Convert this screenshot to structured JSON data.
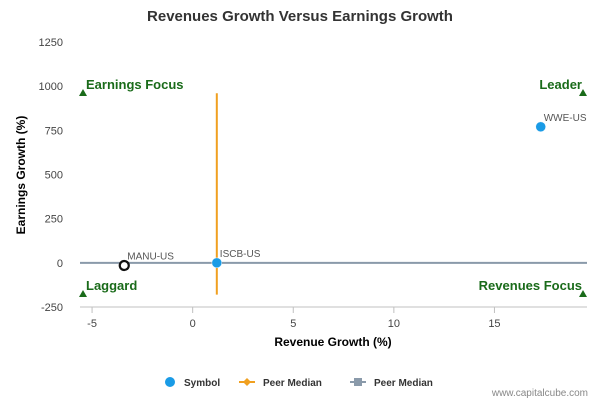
{
  "chart_data": {
    "type": "scatter",
    "title": "Revenues Growth Versus Earnings Growth",
    "xlabel": "Revenue Growth (%)",
    "ylabel": "Earnings Growth (%)",
    "xlim": [
      -5.6,
      19.6
    ],
    "ylim": [
      -250,
      1250
    ],
    "xticks": [
      -5,
      0,
      5,
      10,
      15
    ],
    "yticks": [
      -250,
      0,
      250,
      500,
      750,
      1000,
      1250
    ],
    "xtick_labels": [
      "-5",
      "0",
      "5",
      "10",
      "15"
    ],
    "ytick_labels": [
      "-250",
      "0",
      "250",
      "500",
      "750",
      "1000",
      "1250"
    ],
    "grid": false,
    "points": [
      {
        "label": "WWE-US",
        "x": 17.3,
        "y": 770,
        "style": "filled"
      },
      {
        "label": "ISCB-US",
        "x": 1.2,
        "y": 0,
        "style": "filled"
      },
      {
        "label": "MANU-US",
        "x": -3.4,
        "y": -15,
        "style": "hollow"
      }
    ],
    "peer_median_vertical": {
      "x": 1.2,
      "y_range": [
        -180,
        960
      ]
    },
    "peer_median_horizontal": {
      "y": 0
    },
    "quadrants": [
      {
        "label": "Earnings Focus",
        "corner": "top-left"
      },
      {
        "label": "Leader",
        "corner": "top-right"
      },
      {
        "label": "Laggard",
        "corner": "bottom-left"
      },
      {
        "label": "Revenues Focus",
        "corner": "bottom-right"
      }
    ],
    "legend": {
      "placement": "bottom-center",
      "items": [
        {
          "label": "Symbol",
          "marker": "circle"
        },
        {
          "label": "Peer Median",
          "marker": "diamond-line"
        },
        {
          "label": "Peer Median",
          "marker": "square-line"
        }
      ]
    }
  },
  "colors": {
    "symbol": "#1a9be6",
    "peer_median_vertical": "#f0a020",
    "peer_median_horizontal": "#8a9aaa",
    "quadrant_text": "#1a6b1a",
    "quadrant_marker": "#1a6b1a",
    "hollow_point": "#111111"
  },
  "credit": "www.capitalcube.com"
}
